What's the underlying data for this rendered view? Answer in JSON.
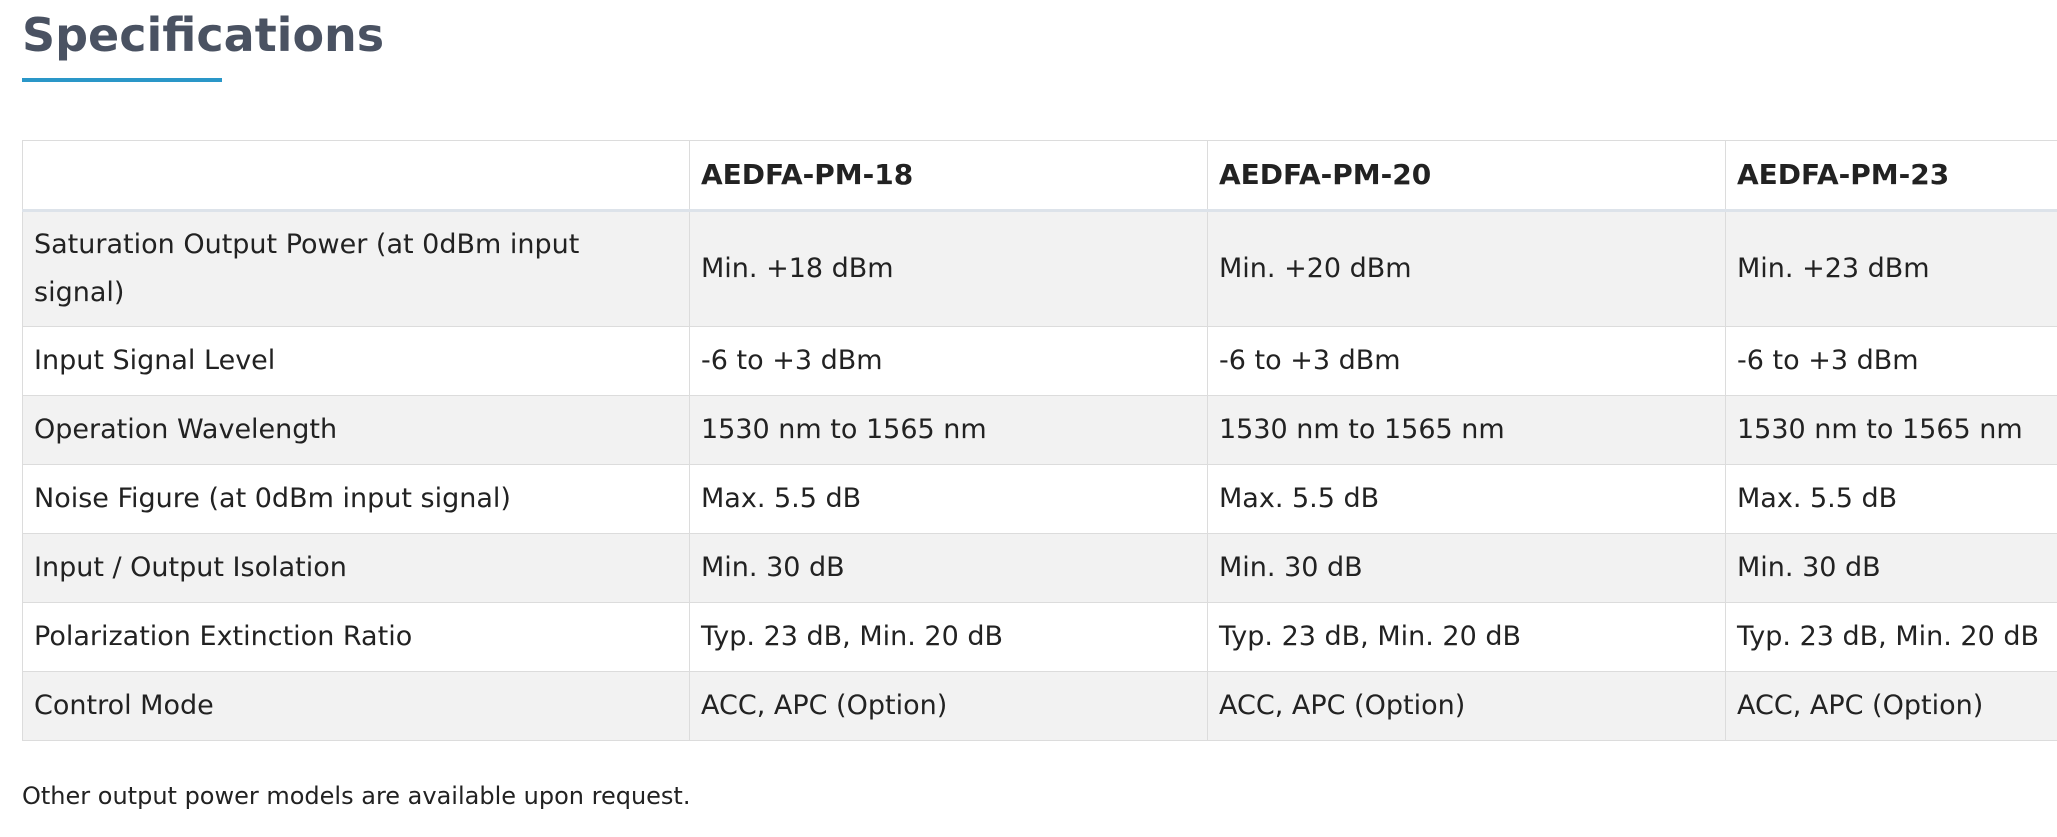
{
  "section": {
    "title": "Specifications"
  },
  "table": {
    "headers": [
      "",
      "AEDFA-PM-18",
      "AEDFA-PM-20",
      "AEDFA-PM-23"
    ],
    "rows": [
      [
        "Saturation Output Power (at 0dBm input signal)",
        "Min. +18 dBm",
        "Min. +20 dBm",
        "Min. +23 dBm"
      ],
      [
        "Input Signal Level",
        "-6 to +3 dBm",
        "-6 to +3 dBm",
        "-6 to +3 dBm"
      ],
      [
        "Operation Wavelength",
        "1530 nm to 1565 nm",
        "1530 nm to 1565 nm",
        "1530 nm to 1565 nm"
      ],
      [
        "Noise Figure (at 0dBm input signal)",
        "Max. 5.5 dB",
        "Max. 5.5 dB",
        "Max. 5.5 dB"
      ],
      [
        "Input / Output Isolation",
        "Min. 30 dB",
        "Min. 30 dB",
        "Min. 30 dB"
      ],
      [
        "Polarization Extinction Ratio",
        "Typ. 23 dB, Min. 20 dB",
        "Typ. 23 dB, Min. 20 dB",
        "Typ. 23 dB, Min. 20 dB"
      ],
      [
        "Control Mode",
        "ACC, APC (Option)",
        "ACC, APC (Option)",
        "ACC, APC (Option)"
      ]
    ]
  },
  "footnote": "Other output power models are available upon request.",
  "colors": {
    "title": "#4a5262",
    "accent_underline": "#2a97c8",
    "shaded_row": "#f2f2f2",
    "border": "#dcdcdc"
  }
}
